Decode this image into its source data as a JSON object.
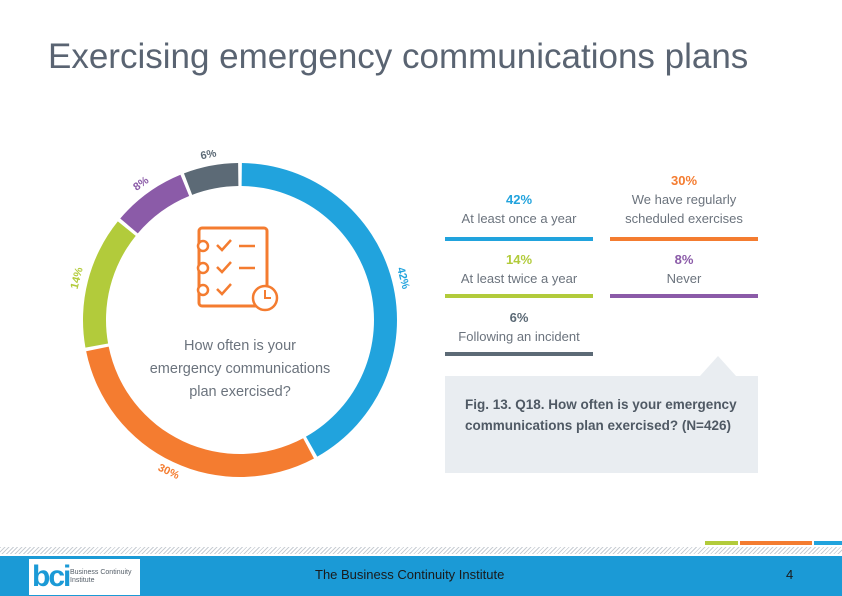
{
  "slide": {
    "title": "Exercising emergency communications plans"
  },
  "chart_data": {
    "type": "pie",
    "variant": "donut",
    "question": "How often is your emergency communications plan exercised?",
    "slices": [
      {
        "label": "At least once a year",
        "value": 42,
        "pct_label": "42%",
        "color": "#21a3dd"
      },
      {
        "label": "We have regularly scheduled exercises",
        "value": 30,
        "pct_label": "30%",
        "color": "#f47c30"
      },
      {
        "label": "At least twice a year",
        "value": 14,
        "pct_label": "14%",
        "color": "#b2cb3b"
      },
      {
        "label": "Never",
        "value": 8,
        "pct_label": "8%",
        "color": "#8b5ba8"
      },
      {
        "label": "Following an incident",
        "value": 6,
        "pct_label": "6%",
        "color": "#5c6a76"
      }
    ],
    "legend_placement": "right"
  },
  "legend": [
    {
      "pct": "42%",
      "label": "At least once a year",
      "color": "#21a3dd"
    },
    {
      "pct": "30%",
      "label_line1": "We have regularly",
      "label_line2": "scheduled exercises",
      "color": "#f47c30"
    },
    {
      "pct": "14%",
      "label": "At least twice a year",
      "color": "#b2cb3b"
    },
    {
      "pct": "8%",
      "label": "Never",
      "color": "#8b5ba8"
    },
    {
      "pct": "6%",
      "label": "Following an incident",
      "color": "#5c6a76"
    }
  ],
  "figure": {
    "caption": "Fig. 13. Q18. How often is your emergency communications plan exercised? (N=426)"
  },
  "footer": {
    "organization": "The Business Continuity Institute",
    "page_number": "4",
    "logo_mark": "bci",
    "logo_text": "Business Continuity Institute"
  }
}
